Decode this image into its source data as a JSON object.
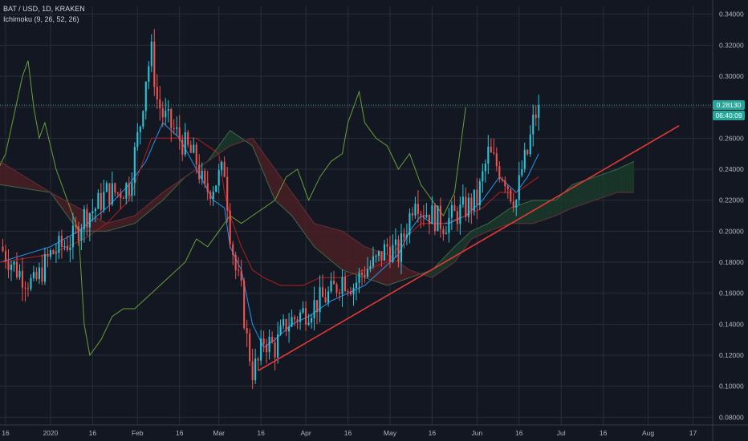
{
  "header": {
    "symbol_line": "BAT / USD, 1D, KRAKEN",
    "indicator_line": "Ichimoku (9, 26, 52, 26)"
  },
  "badges": {
    "last_price": "0.28130",
    "countdown": "06:40:09"
  },
  "colors": {
    "background": "#131722",
    "grid": "#2a2e39",
    "up_candle": "#26c6da",
    "down_candle": "#ef5350",
    "tenkan": "#2196f3",
    "kijun": "#b71c1c",
    "chikou": "#689f38",
    "cloud_bull": "#1b3a2a",
    "cloud_bear": "#4a1e24",
    "trendline": "#e53935",
    "price_line": "#26a69a"
  },
  "chart_data": {
    "type": "candlestick",
    "title": "BAT / USD, 1D, KRAKEN",
    "indicator": "Ichimoku (9, 26, 52, 26)",
    "ylim": [
      0.075,
      0.345
    ],
    "y_ticks": [
      "0.34000",
      "0.32000",
      "0.30000",
      "0.28000",
      "0.26000",
      "0.24000",
      "0.22000",
      "0.20000",
      "0.18000",
      "0.16000",
      "0.14000",
      "0.12000",
      "0.10000",
      "0.08000"
    ],
    "y_tick_values": [
      0.34,
      0.32,
      0.3,
      0.28,
      0.26,
      0.24,
      0.22,
      0.2,
      0.18,
      0.16,
      0.14,
      0.12,
      0.1,
      0.08
    ],
    "x_ticks": [
      "16",
      "2020",
      "16",
      "Feb",
      "16",
      "Mar",
      "16",
      "Apr",
      "16",
      "May",
      "16",
      "Jun",
      "16",
      "Jul",
      "16",
      "Aug",
      "17"
    ],
    "x_tick_days": [
      -16,
      0,
      15,
      31,
      46,
      60,
      75,
      91,
      106,
      121,
      136,
      152,
      167,
      182,
      197,
      213,
      229
    ],
    "x_range_days": [
      -18,
      236
    ],
    "last_price": 0.2813,
    "close_path": [
      [
        -18,
        0.19
      ],
      [
        -12,
        0.175
      ],
      [
        -6,
        0.165
      ],
      [
        0,
        0.185
      ],
      [
        4,
        0.19
      ],
      [
        8,
        0.195
      ],
      [
        12,
        0.21
      ],
      [
        16,
        0.215
      ],
      [
        20,
        0.225
      ],
      [
        24,
        0.225
      ],
      [
        28,
        0.23
      ],
      [
        32,
        0.27
      ],
      [
        34,
        0.3
      ],
      [
        36,
        0.315
      ],
      [
        38,
        0.285
      ],
      [
        40,
        0.275
      ],
      [
        44,
        0.265
      ],
      [
        48,
        0.255
      ],
      [
        52,
        0.245
      ],
      [
        55,
        0.225
      ],
      [
        58,
        0.23
      ],
      [
        62,
        0.24
      ],
      [
        64,
        0.2
      ],
      [
        66,
        0.175
      ],
      [
        68,
        0.16
      ],
      [
        70,
        0.13
      ],
      [
        72,
        0.11
      ],
      [
        74,
        0.115
      ],
      [
        76,
        0.13
      ],
      [
        80,
        0.125
      ],
      [
        84,
        0.14
      ],
      [
        88,
        0.145
      ],
      [
        92,
        0.15
      ],
      [
        96,
        0.155
      ],
      [
        100,
        0.16
      ],
      [
        104,
        0.17
      ],
      [
        108,
        0.165
      ],
      [
        112,
        0.175
      ],
      [
        116,
        0.18
      ],
      [
        120,
        0.19
      ],
      [
        124,
        0.185
      ],
      [
        128,
        0.21
      ],
      [
        130,
        0.225
      ],
      [
        132,
        0.215
      ],
      [
        136,
        0.21
      ],
      [
        140,
        0.205
      ],
      [
        144,
        0.21
      ],
      [
        148,
        0.215
      ],
      [
        152,
        0.22
      ],
      [
        156,
        0.25
      ],
      [
        158,
        0.245
      ],
      [
        162,
        0.235
      ],
      [
        164,
        0.225
      ],
      [
        166,
        0.22
      ],
      [
        168,
        0.24
      ],
      [
        170,
        0.25
      ],
      [
        172,
        0.27
      ],
      [
        174,
        0.2813
      ]
    ],
    "trendline": [
      [
        74,
        0.11
      ],
      [
        224,
        0.268
      ]
    ],
    "series": [
      {
        "name": "Tenkan",
        "values": [
          [
            -18,
            0.18
          ],
          [
            0,
            0.19
          ],
          [
            10,
            0.2
          ],
          [
            20,
            0.215
          ],
          [
            28,
            0.23
          ],
          [
            34,
            0.245
          ],
          [
            40,
            0.27
          ],
          [
            46,
            0.26
          ],
          [
            52,
            0.24
          ],
          [
            58,
            0.22
          ],
          [
            62,
            0.215
          ],
          [
            64,
            0.19
          ],
          [
            68,
            0.175
          ],
          [
            72,
            0.14
          ],
          [
            76,
            0.125
          ],
          [
            80,
            0.13
          ],
          [
            86,
            0.14
          ],
          [
            92,
            0.145
          ],
          [
            96,
            0.15
          ],
          [
            100,
            0.155
          ],
          [
            106,
            0.16
          ],
          [
            112,
            0.165
          ],
          [
            118,
            0.175
          ],
          [
            124,
            0.185
          ],
          [
            128,
            0.2
          ],
          [
            132,
            0.21
          ],
          [
            136,
            0.205
          ],
          [
            142,
            0.205
          ],
          [
            148,
            0.21
          ],
          [
            154,
            0.22
          ],
          [
            160,
            0.235
          ],
          [
            166,
            0.225
          ],
          [
            170,
            0.235
          ],
          [
            174,
            0.25
          ]
        ]
      },
      {
        "name": "Kijun",
        "values": [
          [
            -18,
            0.18
          ],
          [
            0,
            0.185
          ],
          [
            12,
            0.195
          ],
          [
            20,
            0.205
          ],
          [
            28,
            0.22
          ],
          [
            36,
            0.26
          ],
          [
            44,
            0.26
          ],
          [
            52,
            0.26
          ],
          [
            60,
            0.25
          ],
          [
            62,
            0.225
          ],
          [
            64,
            0.21
          ],
          [
            68,
            0.19
          ],
          [
            72,
            0.175
          ],
          [
            76,
            0.17
          ],
          [
            82,
            0.165
          ],
          [
            90,
            0.165
          ],
          [
            96,
            0.17
          ],
          [
            104,
            0.17
          ],
          [
            112,
            0.175
          ],
          [
            120,
            0.18
          ],
          [
            126,
            0.195
          ],
          [
            132,
            0.205
          ],
          [
            140,
            0.205
          ],
          [
            148,
            0.21
          ],
          [
            154,
            0.215
          ],
          [
            160,
            0.225
          ],
          [
            166,
            0.225
          ],
          [
            170,
            0.23
          ],
          [
            174,
            0.235
          ]
        ]
      },
      {
        "name": "Chikou",
        "values": [
          [
            -44,
            0.19
          ],
          [
            -34,
            0.2
          ],
          [
            -24,
            0.22
          ],
          [
            -16,
            0.25
          ],
          [
            -10,
            0.3
          ],
          [
            -8,
            0.31
          ],
          [
            -6,
            0.28
          ],
          [
            -4,
            0.26
          ],
          [
            -2,
            0.27
          ],
          [
            2,
            0.24
          ],
          [
            6,
            0.22
          ],
          [
            10,
            0.2
          ],
          [
            12,
            0.14
          ],
          [
            14,
            0.12
          ],
          [
            18,
            0.13
          ],
          [
            22,
            0.145
          ],
          [
            26,
            0.15
          ],
          [
            30,
            0.15
          ],
          [
            36,
            0.16
          ],
          [
            42,
            0.17
          ],
          [
            48,
            0.18
          ],
          [
            52,
            0.195
          ],
          [
            56,
            0.19
          ],
          [
            60,
            0.2
          ],
          [
            64,
            0.21
          ],
          [
            68,
            0.205
          ],
          [
            72,
            0.21
          ],
          [
            76,
            0.215
          ],
          [
            80,
            0.22
          ],
          [
            84,
            0.235
          ],
          [
            88,
            0.24
          ],
          [
            90,
            0.23
          ],
          [
            92,
            0.22
          ],
          [
            96,
            0.235
          ],
          [
            100,
            0.245
          ],
          [
            104,
            0.25
          ],
          [
            106,
            0.27
          ],
          [
            108,
            0.28
          ],
          [
            110,
            0.29
          ],
          [
            112,
            0.27
          ],
          [
            116,
            0.26
          ],
          [
            120,
            0.255
          ],
          [
            124,
            0.24
          ],
          [
            128,
            0.25
          ],
          [
            132,
            0.23
          ],
          [
            136,
            0.22
          ],
          [
            140,
            0.21
          ],
          [
            144,
            0.225
          ],
          [
            148,
            0.28
          ]
        ]
      },
      {
        "name": "Senkou Span A",
        "values": [
          [
            -18,
            0.23
          ],
          [
            0,
            0.225
          ],
          [
            10,
            0.2
          ],
          [
            20,
            0.2
          ],
          [
            30,
            0.205
          ],
          [
            40,
            0.22
          ],
          [
            48,
            0.235
          ],
          [
            56,
            0.245
          ],
          [
            64,
            0.265
          ],
          [
            72,
            0.255
          ],
          [
            80,
            0.22
          ],
          [
            86,
            0.21
          ],
          [
            94,
            0.19
          ],
          [
            104,
            0.175
          ],
          [
            112,
            0.17
          ],
          [
            120,
            0.165
          ],
          [
            128,
            0.17
          ],
          [
            136,
            0.175
          ],
          [
            144,
            0.19
          ],
          [
            150,
            0.2
          ],
          [
            156,
            0.205
          ],
          [
            164,
            0.215
          ],
          [
            172,
            0.22
          ],
          [
            180,
            0.22
          ],
          [
            186,
            0.23
          ],
          [
            194,
            0.235
          ],
          [
            202,
            0.24
          ],
          [
            208,
            0.245
          ]
        ]
      },
      {
        "name": "Senkou Span B",
        "values": [
          [
            -18,
            0.245
          ],
          [
            0,
            0.225
          ],
          [
            10,
            0.215
          ],
          [
            20,
            0.205
          ],
          [
            30,
            0.21
          ],
          [
            40,
            0.225
          ],
          [
            48,
            0.235
          ],
          [
            56,
            0.245
          ],
          [
            64,
            0.255
          ],
          [
            72,
            0.26
          ],
          [
            80,
            0.24
          ],
          [
            86,
            0.225
          ],
          [
            94,
            0.205
          ],
          [
            104,
            0.2
          ],
          [
            112,
            0.19
          ],
          [
            120,
            0.185
          ],
          [
            128,
            0.175
          ],
          [
            136,
            0.17
          ],
          [
            144,
            0.18
          ],
          [
            150,
            0.195
          ],
          [
            156,
            0.2
          ],
          [
            164,
            0.205
          ],
          [
            172,
            0.205
          ],
          [
            180,
            0.21
          ],
          [
            186,
            0.215
          ],
          [
            194,
            0.22
          ],
          [
            202,
            0.225
          ],
          [
            208,
            0.225
          ]
        ]
      }
    ]
  }
}
